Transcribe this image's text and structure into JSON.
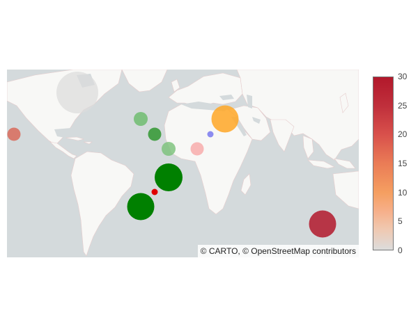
{
  "map": {
    "attribution": "© CARTO, © OpenStreetMap contributors"
  },
  "colorbar": {
    "ticks": [
      "30",
      "25",
      "20",
      "15",
      "10",
      "5",
      "0"
    ],
    "range": [
      0,
      30
    ],
    "colors": [
      "#dcdcdc",
      "#f4a582",
      "#b2182b"
    ]
  },
  "colors": {
    "ocean": "#d4dadc",
    "land": "#f8f8f6",
    "marker_green": "#008000",
    "marker_light_green": "#62b862",
    "marker_orange": "#ffa726",
    "marker_dark_red": "#b2182b",
    "marker_red": "#e00000",
    "marker_pink": "#f8a8a8",
    "marker_blue": "#8c8cf0",
    "marker_grey": "#dcdcdc",
    "marker_salmon": "#d86a5a"
  }
}
